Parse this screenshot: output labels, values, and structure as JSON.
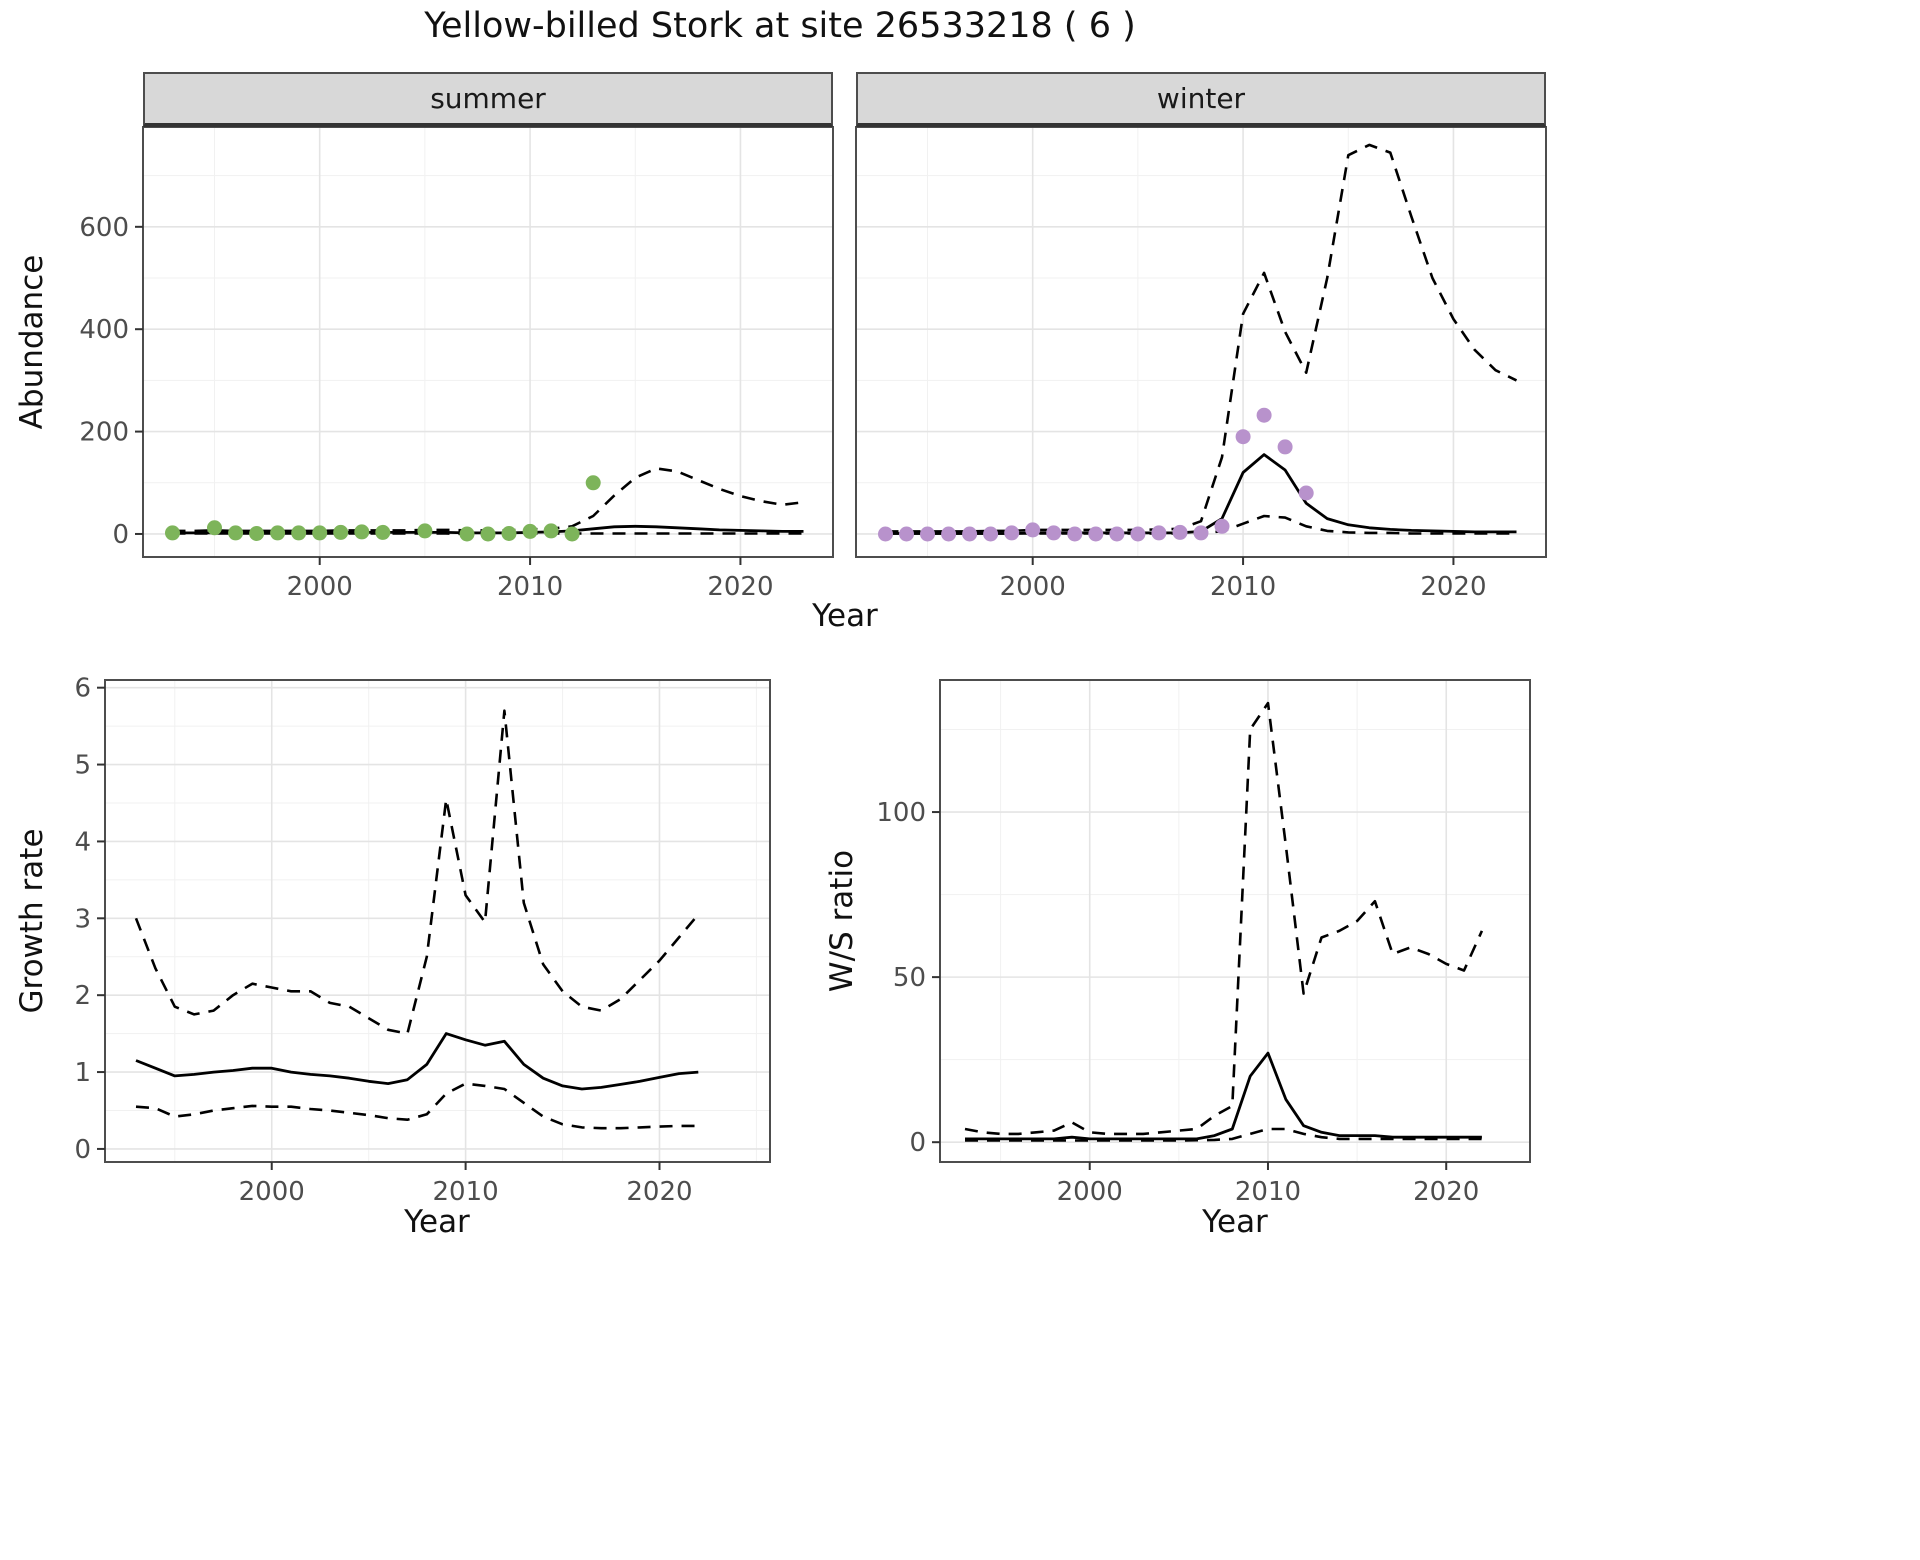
{
  "title": "Yellow-billed Stork at site 26533218 ( 6 )",
  "colors": {
    "line": "#000000",
    "strip_background": "#d8d8d8",
    "panel_border": "#4d4d4d",
    "grid_major": "#e4e4e4",
    "grid_minor": "#f1f1f1",
    "tick": "#333333",
    "axis_text": "#4d4d4d",
    "summer_points": "#7db45a",
    "winter_points": "#b892cc"
  },
  "chart_data": [
    {
      "id": "abundance",
      "type": "line",
      "xlabel": "Year",
      "ylabel": "Abundance",
      "xlim": [
        1991.6,
        2024.4
      ],
      "ylim": [
        -45,
        795
      ],
      "x_ticks": [
        2000,
        2010,
        2020
      ],
      "y_ticks": [
        0,
        200,
        400,
        600
      ],
      "grid": true,
      "legend": "none",
      "years": [
        1993,
        1994,
        1995,
        1996,
        1997,
        1998,
        1999,
        2000,
        2001,
        2002,
        2003,
        2004,
        2005,
        2006,
        2007,
        2008,
        2009,
        2010,
        2011,
        2012,
        2013,
        2014,
        2015,
        2016,
        2017,
        2018,
        2019,
        2020,
        2021,
        2022,
        2023
      ],
      "facets": [
        {
          "label": "summer",
          "point_color": "#7db45a",
          "series": [
            {
              "name": "median",
              "style": "solid",
              "values": [
                2,
                2,
                2,
                2,
                2,
                2,
                2,
                2,
                3,
                3,
                3,
                3,
                3,
                3,
                2,
                2,
                2,
                3,
                4,
                6,
                10,
                14,
                15,
                14,
                12,
                10,
                8,
                7,
                6,
                5,
                5
              ]
            },
            {
              "name": "upper-ci",
              "style": "dashed",
              "values": [
                6,
                6,
                7,
                6,
                6,
                6,
                6,
                6,
                7,
                7,
                7,
                7,
                8,
                8,
                7,
                7,
                7,
                9,
                10,
                15,
                35,
                75,
                110,
                128,
                122,
                105,
                88,
                74,
                64,
                57,
                62
              ]
            },
            {
              "name": "lower-ci",
              "style": "dashed",
              "values": [
                1,
                1,
                1,
                1,
                1,
                1,
                1,
                1,
                1,
                1,
                1,
                1,
                1,
                1,
                0,
                0,
                0,
                1,
                1,
                1,
                1,
                1,
                1,
                1,
                1,
                1,
                1,
                1,
                1,
                1,
                1
              ]
            }
          ],
          "observations": {
            "years": [
              1993,
              1995,
              1996,
              1997,
              1998,
              1999,
              2000,
              2001,
              2002,
              2003,
              2005,
              2007,
              2008,
              2009,
              2010,
              2011,
              2012,
              2013
            ],
            "values": [
              2,
              12,
              2,
              1,
              2,
              2,
              2,
              3,
              4,
              3,
              6,
              0,
              0,
              1,
              5,
              6,
              0,
              100
            ]
          }
        },
        {
          "label": "winter",
          "point_color": "#b892cc",
          "series": [
            {
              "name": "median",
              "style": "solid",
              "values": [
                1,
                1,
                1,
                1,
                1,
                1,
                1,
                2,
                2,
                2,
                2,
                2,
                2,
                2,
                2,
                5,
                30,
                120,
                155,
                125,
                60,
                30,
                18,
                12,
                9,
                7,
                6,
                5,
                4,
                4,
                4
              ]
            },
            {
              "name": "upper-ci",
              "style": "dashed",
              "values": [
                5,
                5,
                5,
                5,
                5,
                6,
                6,
                8,
                8,
                8,
                8,
                8,
                8,
                9,
                10,
                25,
                150,
                430,
                510,
                395,
                315,
                500,
                740,
                760,
                745,
                620,
                500,
                420,
                360,
                320,
                300
              ]
            },
            {
              "name": "lower-ci",
              "style": "dashed",
              "values": [
                1,
                1,
                1,
                1,
                1,
                1,
                1,
                1,
                1,
                1,
                1,
                1,
                1,
                1,
                1,
                2,
                5,
                20,
                35,
                32,
                15,
                6,
                3,
                2,
                2,
                1,
                1,
                1,
                1,
                1,
                1
              ]
            }
          ],
          "observations": {
            "years": [
              1993,
              1994,
              1995,
              1996,
              1997,
              1998,
              1999,
              2000,
              2001,
              2002,
              2003,
              2004,
              2005,
              2006,
              2007,
              2008,
              2009,
              2010,
              2011,
              2012,
              2013
            ],
            "values": [
              0,
              0,
              0,
              0,
              0,
              0,
              2,
              8,
              2,
              0,
              0,
              0,
              0,
              2,
              3,
              2,
              15,
              190,
              232,
              170,
              80
            ]
          }
        }
      ]
    },
    {
      "id": "growth-rate",
      "type": "line",
      "xlabel": "Year",
      "ylabel": "Growth rate",
      "xlim": [
        1991.4,
        2025.7
      ],
      "ylim": [
        -0.17,
        6.1
      ],
      "x_ticks": [
        2000,
        2010,
        2020
      ],
      "y_ticks": [
        0,
        1,
        2,
        3,
        4,
        5,
        6
      ],
      "grid": true,
      "legend": "none",
      "years": [
        1993,
        1994,
        1995,
        1996,
        1997,
        1998,
        1999,
        2000,
        2001,
        2002,
        2003,
        2004,
        2005,
        2006,
        2007,
        2008,
        2009,
        2010,
        2011,
        2012,
        2013,
        2014,
        2015,
        2016,
        2017,
        2018,
        2019,
        2020,
        2021,
        2022
      ],
      "series": [
        {
          "name": "median",
          "style": "solid",
          "values": [
            1.15,
            1.05,
            0.95,
            0.97,
            1.0,
            1.02,
            1.05,
            1.05,
            1.0,
            0.97,
            0.95,
            0.92,
            0.88,
            0.85,
            0.9,
            1.1,
            1.5,
            1.42,
            1.35,
            1.4,
            1.1,
            0.92,
            0.82,
            0.78,
            0.8,
            0.84,
            0.88,
            0.93,
            0.98,
            1.0
          ]
        },
        {
          "name": "upper-ci",
          "style": "dashed",
          "values": [
            3.0,
            2.35,
            1.85,
            1.75,
            1.8,
            2.0,
            2.15,
            2.1,
            2.05,
            2.05,
            1.9,
            1.85,
            1.7,
            1.55,
            1.5,
            2.5,
            4.55,
            3.3,
            2.95,
            5.7,
            3.2,
            2.4,
            2.05,
            1.85,
            1.8,
            1.95,
            2.2,
            2.45,
            2.75,
            3.05
          ]
        },
        {
          "name": "lower-ci",
          "style": "dashed",
          "values": [
            0.55,
            0.53,
            0.42,
            0.45,
            0.5,
            0.53,
            0.56,
            0.55,
            0.55,
            0.52,
            0.5,
            0.47,
            0.44,
            0.4,
            0.38,
            0.45,
            0.72,
            0.85,
            0.82,
            0.78,
            0.6,
            0.42,
            0.32,
            0.28,
            0.27,
            0.27,
            0.28,
            0.29,
            0.3,
            0.3
          ]
        }
      ]
    },
    {
      "id": "ws-ratio",
      "type": "line",
      "xlabel": "Year",
      "ylabel": "W/S ratio",
      "xlim": [
        1991.6,
        2024.7
      ],
      "ylim": [
        -6,
        140
      ],
      "x_ticks": [
        2000,
        2010,
        2020
      ],
      "y_ticks": [
        0,
        50,
        100
      ],
      "grid": true,
      "legend": "none",
      "years": [
        1993,
        1994,
        1995,
        1996,
        1997,
        1998,
        1999,
        2000,
        2001,
        2002,
        2003,
        2004,
        2005,
        2006,
        2007,
        2008,
        2009,
        2010,
        2011,
        2012,
        2013,
        2014,
        2015,
        2016,
        2017,
        2018,
        2019,
        2020,
        2021,
        2022
      ],
      "series": [
        {
          "name": "median",
          "style": "solid",
          "values": [
            1,
            1,
            1,
            1,
            1,
            1,
            1.5,
            1,
            1,
            1,
            1,
            1,
            1,
            1,
            2,
            4,
            20,
            27,
            13,
            5,
            3,
            2,
            2,
            2,
            1.5,
            1.5,
            1.5,
            1.5,
            1.5,
            1.5
          ]
        },
        {
          "name": "upper-ci",
          "style": "dashed",
          "values": [
            4,
            3,
            2.5,
            2.5,
            3,
            3.5,
            6,
            3,
            2.5,
            2.5,
            2.5,
            3,
            3.5,
            4,
            8,
            11,
            125,
            133,
            90,
            45,
            62,
            64,
            67,
            73,
            57,
            59,
            57,
            54,
            52,
            64
          ]
        },
        {
          "name": "lower-ci",
          "style": "dashed",
          "values": [
            0.5,
            0.5,
            0.5,
            0.5,
            0.5,
            0.5,
            0.5,
            0.5,
            0.5,
            0.5,
            0.5,
            0.5,
            0.5,
            0.6,
            0.7,
            1,
            2.5,
            4,
            4,
            2.5,
            1.5,
            1,
            1,
            1,
            1,
            1,
            1,
            1,
            1,
            1
          ]
        }
      ]
    }
  ]
}
